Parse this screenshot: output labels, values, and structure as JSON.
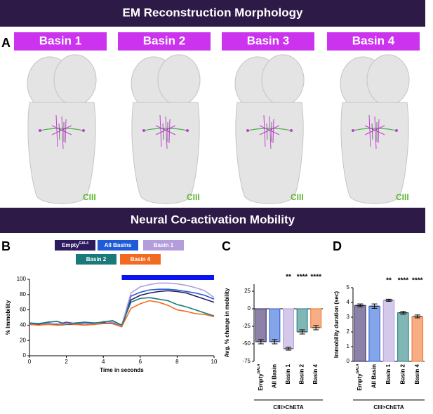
{
  "banners": [
    "EM Reconstruction Morphology",
    "Neural Co-activation Mobility"
  ],
  "panel_labels": [
    "A",
    "B",
    "C",
    "D"
  ],
  "morphology": {
    "panels": [
      {
        "title": "Basin 1",
        "label": "CIII"
      },
      {
        "title": "Basin 2",
        "label": "CIII"
      },
      {
        "title": "Basin 3",
        "label": "CIII"
      },
      {
        "title": "Basin 4",
        "label": "CIII"
      }
    ]
  },
  "empty_superscript": "GAL4",
  "chart_data": [
    {
      "type": "line",
      "xlabel": "Time in seconds",
      "ylabel": "% Immobility",
      "x": [
        0,
        0.5,
        1,
        1.5,
        2,
        2.5,
        3,
        3.5,
        4,
        4.5,
        5,
        5.5,
        6,
        6.5,
        7,
        7.5,
        8,
        8.5,
        9,
        9.5,
        10
      ],
      "xlim": [
        0,
        10
      ],
      "xticks": [
        0,
        2,
        4,
        6,
        8,
        10
      ],
      "ylim": [
        0,
        100
      ],
      "yticks": [
        0,
        20,
        40,
        60,
        80,
        100
      ],
      "stimulus": [
        5,
        10
      ],
      "stimulus_color": "#0a14f0",
      "series": [
        {
          "name": "Empty",
          "color": "#2d1b5e",
          "values": [
            42,
            41,
            42,
            40,
            41,
            41,
            42,
            41,
            43,
            42,
            38,
            73,
            79,
            82,
            84,
            85,
            84,
            82,
            78,
            74,
            70
          ]
        },
        {
          "name": "All Basins",
          "color": "#1f5bd6",
          "values": [
            42,
            42,
            43,
            41,
            44,
            42,
            43,
            42,
            42,
            43,
            40,
            78,
            83,
            86,
            87,
            87,
            86,
            84,
            82,
            79,
            74
          ]
        },
        {
          "name": "Basin 1",
          "color": "#b39ddb",
          "values": [
            41,
            40,
            42,
            42,
            41,
            43,
            42,
            41,
            45,
            44,
            40,
            82,
            90,
            93,
            95,
            95,
            94,
            92,
            89,
            85,
            76
          ]
        },
        {
          "name": "Basin 2",
          "color": "#1a7a7a",
          "values": [
            43,
            42,
            44,
            45,
            41,
            43,
            44,
            43,
            44,
            46,
            40,
            70,
            75,
            76,
            74,
            72,
            67,
            64,
            60,
            56,
            52
          ]
        },
        {
          "name": "Basin 4",
          "color": "#f26b21",
          "values": [
            41,
            40,
            41,
            40,
            42,
            41,
            40,
            41,
            42,
            42,
            38,
            62,
            68,
            72,
            70,
            66,
            60,
            58,
            55,
            54,
            51
          ]
        }
      ]
    },
    {
      "type": "bar",
      "ylabel": "Avg. % change in mobility",
      "categories": [
        "Empty",
        "All Basin",
        "Basin 1",
        "Basin 2",
        "Basin 4"
      ],
      "values": [
        -47,
        -47,
        -57,
        -33,
        -27
      ],
      "errors": [
        3,
        3,
        2,
        3,
        3
      ],
      "colors": [
        "#2d1b5e",
        "#1f5bd6",
        "#b39ddb",
        "#1a7a7a",
        "#f26b21"
      ],
      "significance": [
        null,
        null,
        "**",
        "****",
        "****"
      ],
      "ylim": [
        -75,
        35
      ],
      "yticks": [
        -75,
        -50,
        -25,
        0,
        25
      ],
      "group_label": "CIII>ChETA"
    },
    {
      "type": "bar",
      "ylabel": "Immobility duration (sec)",
      "categories": [
        "Empty",
        "All Basin",
        "Basin 1",
        "Basin 2",
        "Basin 4"
      ],
      "values": [
        3.8,
        3.75,
        4.15,
        3.3,
        3.05
      ],
      "errors": [
        0.1,
        0.15,
        0.07,
        0.1,
        0.1
      ],
      "colors": [
        "#2d1b5e",
        "#1f5bd6",
        "#b39ddb",
        "#1a7a7a",
        "#f26b21"
      ],
      "significance": [
        null,
        null,
        "**",
        "****",
        "****"
      ],
      "ylim": [
        0,
        5
      ],
      "yticks": [
        0,
        1,
        2,
        3,
        4,
        5
      ],
      "group_label": "CIII>ChETA"
    }
  ]
}
